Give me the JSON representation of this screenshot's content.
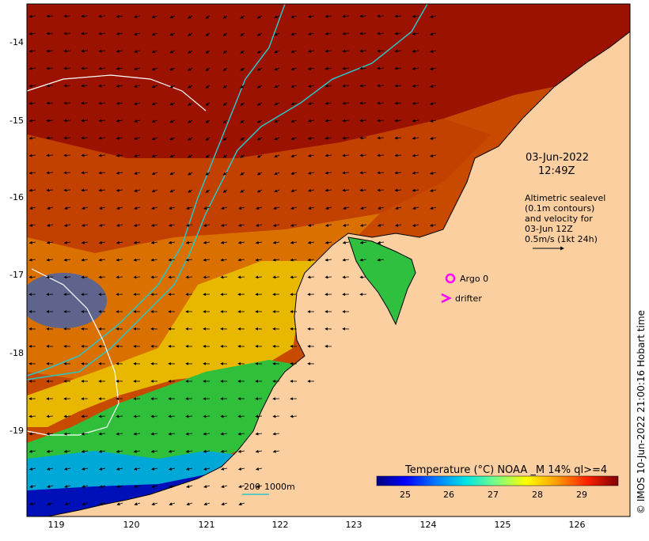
{
  "date_line": "03-Jun-2022",
  "time_line": "12:49Z",
  "altimetry_note": [
    "Altimetric sealevel",
    "(0.1m contours)",
    "and velocity for",
    "03-Jun 12Z",
    "0.5m/s (1kt 24h)"
  ],
  "legend": {
    "argo_label": "Argo 0",
    "drifter_label": "drifter",
    "argo_color": "#ff00ff",
    "drifter_color": "#ff00ff"
  },
  "bathy_scale": {
    "label_200": "200",
    "label_1000": "1000m",
    "color": "#2ec4c4"
  },
  "colorbar": {
    "title": "Temperature (°C) NOAA _M 14% ql>=4",
    "ticks": [
      "25",
      "26",
      "27",
      "28",
      "29"
    ],
    "colors": [
      "#00007f",
      "#0000ff",
      "#007fff",
      "#00ffff",
      "#7fff7f",
      "#ffff00",
      "#ff7f00",
      "#ff0000",
      "#7f0000"
    ]
  },
  "x_axis": {
    "ticks": [
      "119",
      "120",
      "121",
      "122",
      "123",
      "124",
      "125",
      "126"
    ]
  },
  "y_axis": {
    "ticks": [
      "-14",
      "-15",
      "-16",
      "-17",
      "-18",
      "-19"
    ]
  },
  "credit": "© IMOS 10-Jun-2022 21:00:16 Hobart time",
  "colors": {
    "land": "#fbcfa0",
    "coast": "#000000",
    "arrow": "#000000",
    "contour": "#ffffff"
  }
}
